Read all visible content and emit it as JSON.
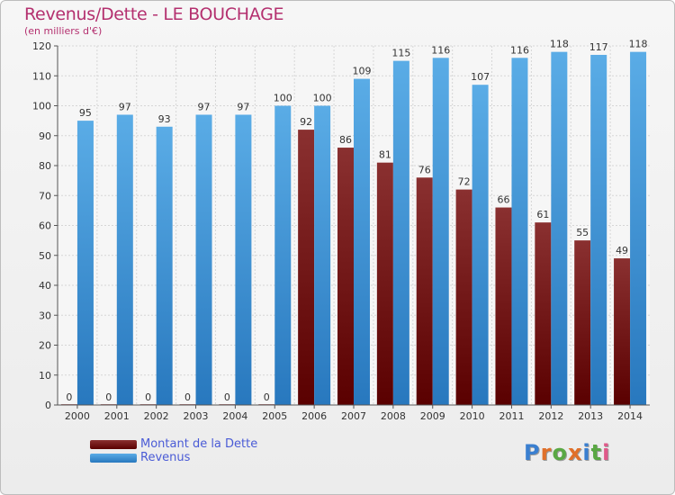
{
  "colors": {
    "title": "#b4306f",
    "debt_top": "#8a3030",
    "debt_bottom": "#5a0000",
    "revenue_top": "#5aace6",
    "revenue_bottom": "#2878be",
    "legend_text": "#4a5bd6"
  },
  "brand": {
    "letters": [
      "P",
      "r",
      "o",
      "x",
      "i",
      "t",
      "i"
    ],
    "letter_colors": [
      "#3a7fd0",
      "#e0702a",
      "#5aa844",
      "#e0702a",
      "#3a7fd0",
      "#5aa844",
      "#e05a8a"
    ]
  },
  "chart_data": {
    "type": "bar",
    "title": "Revenus/Dette - LE BOUCHAGE",
    "subtitle": "(en milliers d'€)",
    "categories": [
      "2000",
      "2001",
      "2002",
      "2003",
      "2004",
      "2005",
      "2006",
      "2007",
      "2008",
      "2009",
      "2010",
      "2011",
      "2012",
      "2013",
      "2014"
    ],
    "series": [
      {
        "name": "Montant de la Dette",
        "values": [
          0,
          0,
          0,
          0,
          0,
          0,
          92,
          86,
          81,
          76,
          72,
          66,
          61,
          55,
          49
        ]
      },
      {
        "name": "Revenus",
        "values": [
          95,
          97,
          93,
          97,
          97,
          100,
          100,
          109,
          115,
          116,
          107,
          116,
          118,
          117,
          118
        ]
      }
    ],
    "ylim": [
      0,
      120
    ],
    "yticks": [
      0,
      10,
      20,
      30,
      40,
      50,
      60,
      70,
      80,
      90,
      100,
      110,
      120
    ],
    "grid": true,
    "legend": "bottom-left"
  }
}
